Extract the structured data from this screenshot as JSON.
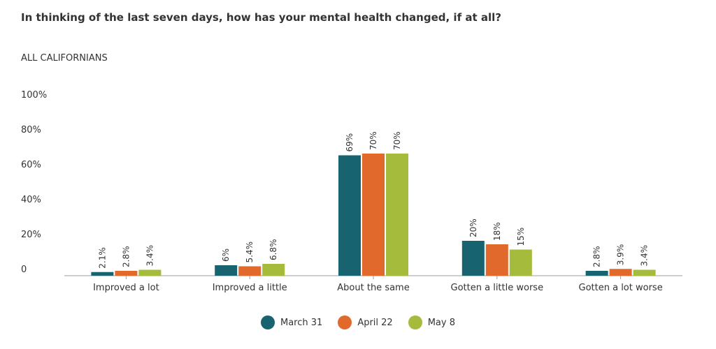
{
  "chart_data": {
    "type": "bar",
    "title": "In thinking of the last seven days, how has your mental health changed, if at all?",
    "subtitle": "ALL CALIFORNIANS",
    "categories": [
      "Improved a lot",
      "Improved a little",
      "About the same",
      "Gotten a little worse",
      "Gotten a lot worse"
    ],
    "series": [
      {
        "name": "March 31",
        "color": "#17636f",
        "values": [
          2.1,
          6,
          69,
          20,
          2.8
        ],
        "labels": [
          "2.1%",
          "6%",
          "69%",
          "20%",
          "2.8%"
        ]
      },
      {
        "name": "April 22",
        "color": "#e0692b",
        "values": [
          2.8,
          5.4,
          70,
          18,
          3.9
        ],
        "labels": [
          "2.8%",
          "5.4%",
          "70%",
          "18%",
          "3.9%"
        ]
      },
      {
        "name": "May 8",
        "color": "#a4bb3c",
        "values": [
          3.4,
          6.8,
          70,
          15,
          3.4
        ],
        "labels": [
          "3.4%",
          "6.8%",
          "70%",
          "15%",
          "3.4%"
        ]
      }
    ],
    "y_ticks": [
      {
        "value": 0,
        "label": "0"
      },
      {
        "value": 20,
        "label": "20%"
      },
      {
        "value": 40,
        "label": "40%"
      },
      {
        "value": 60,
        "label": "60%"
      },
      {
        "value": 80,
        "label": "80%"
      },
      {
        "value": 100,
        "label": "100%"
      }
    ],
    "ylim": [
      0,
      100
    ],
    "xlabel": "",
    "ylabel": "",
    "grid": false,
    "legend_position": "bottom-center"
  }
}
